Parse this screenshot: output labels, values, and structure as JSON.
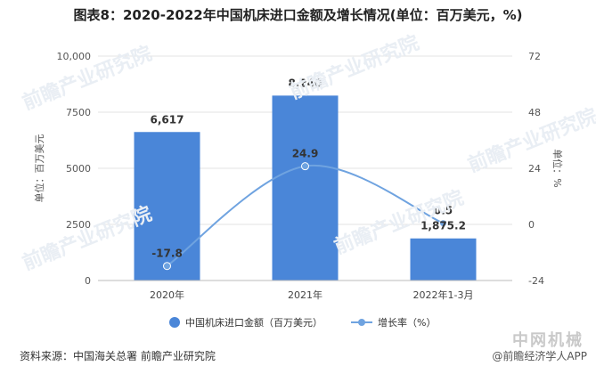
{
  "title": "图表8：2020-2022年中国机床进口金额及增长情况(单位：百万美元，%)",
  "source": "资料来源：中国海关总署 前瞻产业研究院",
  "credit": "@前瞻经济学人APP",
  "watermark_text": "前瞻产业研究院",
  "corner_logo": "中网机械",
  "chart_data": {
    "type": "bar",
    "categories": [
      "2020年",
      "2021年",
      "2022年1-3月"
    ],
    "series": [
      {
        "name": "中国机床进口金额（百万美元）",
        "type": "bar",
        "axis": "left",
        "values": [
          6617,
          8240,
          1875.2
        ],
        "labels": [
          "6,617",
          "8,240",
          "1,875.2"
        ],
        "color": "#4a86d8"
      },
      {
        "name": "增长率（%）",
        "type": "line",
        "axis": "right",
        "values": [
          -17.8,
          24.9,
          0.5
        ],
        "labels": [
          "-17.8",
          "24.9",
          "0.5"
        ],
        "color": "#6fa3e0"
      }
    ],
    "ylabel_left": "单位：百万美元",
    "ylabel_right": "单位：%",
    "ylim_left": [
      0,
      10000
    ],
    "yticks_left": [
      "0",
      "2500",
      "5000",
      "7500",
      "10,000"
    ],
    "ylim_right": [
      -24,
      72
    ],
    "yticks_right": [
      "-24",
      "0",
      "24",
      "48",
      "72"
    ],
    "legend_position": "bottom",
    "grid": true
  }
}
